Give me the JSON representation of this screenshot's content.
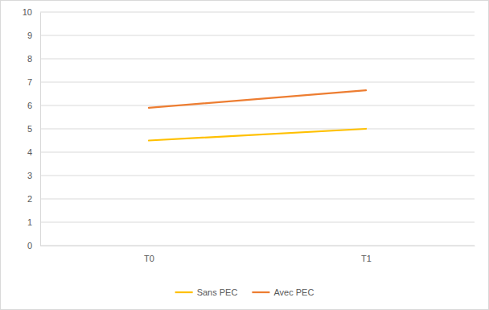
{
  "chart_data": {
    "type": "line",
    "categories": [
      "T0",
      "T1"
    ],
    "series": [
      {
        "name": "Sans PEC",
        "color": "#ffc000",
        "values": [
          4.5,
          5.0
        ]
      },
      {
        "name": "Avec PEC",
        "color": "#ed7d31",
        "values": [
          5.9,
          6.65
        ]
      }
    ],
    "ylim": [
      0,
      10
    ],
    "yticks": [
      0,
      1,
      2,
      3,
      4,
      5,
      6,
      7,
      8,
      9,
      10
    ],
    "grid": true,
    "legend": "bottom"
  }
}
